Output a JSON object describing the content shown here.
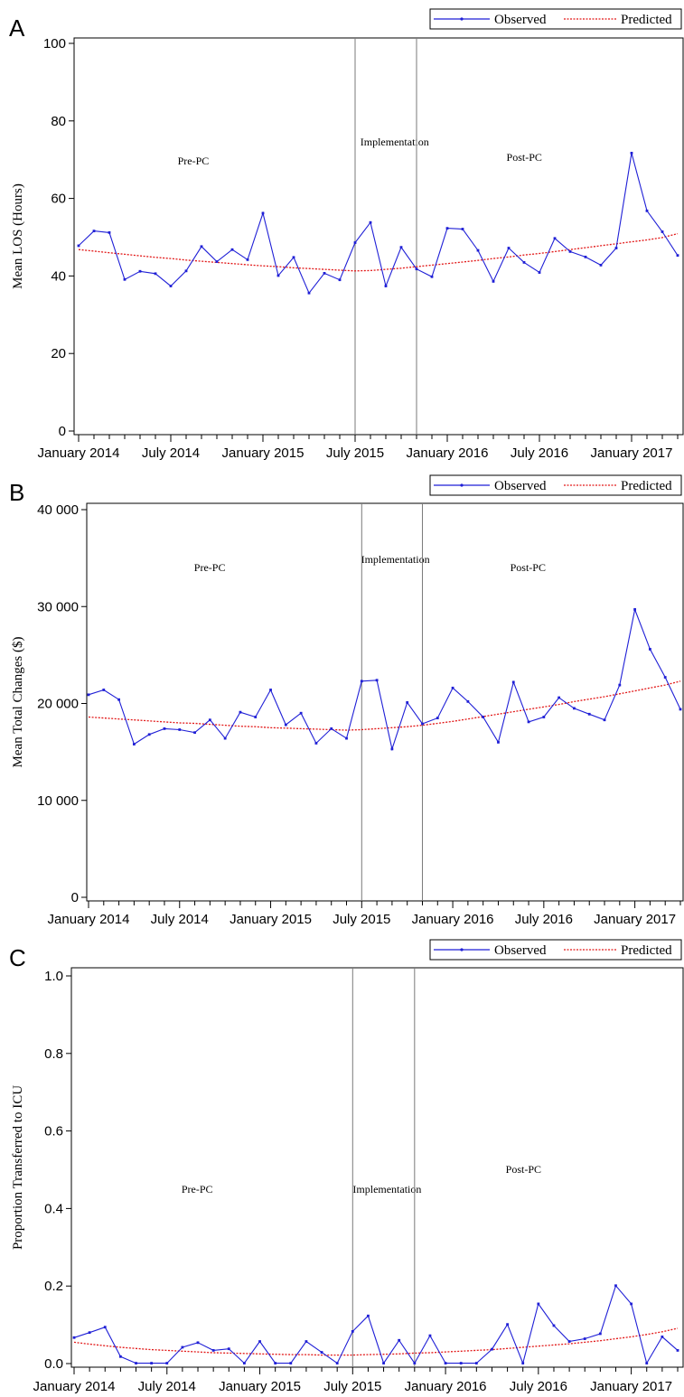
{
  "legend": {
    "observed": "Observed",
    "predicted": "Predicted"
  },
  "colors": {
    "observed": "#1f1fd6",
    "predicted": "#e21818",
    "axis": "#000000",
    "phase_line": "#7a7a7a"
  },
  "chart_data": [
    {
      "panel_label": "A",
      "type": "line",
      "ylabel": "Mean LOS (Hours)",
      "ylim": [
        0,
        100
      ],
      "yticks": [
        0,
        20,
        40,
        60,
        80,
        100
      ],
      "ytick_labels": [
        "0",
        "20",
        "40",
        "60",
        "80",
        "100"
      ],
      "xtick_labels": [
        "January 2014",
        "July 2014",
        "January 2015",
        "July 2015",
        "January 2016",
        "July 2016",
        "January 2017"
      ],
      "phase_labels": [
        "Pre-PC",
        "Implementation",
        "Post-PC"
      ],
      "phase_boundaries_month_index": [
        18,
        22
      ],
      "series": [
        {
          "name": "Observed",
          "values": [
            47.8,
            51.6,
            51.2,
            39.1,
            41.2,
            40.6,
            37.4,
            41.3,
            47.6,
            43.7,
            46.8,
            44.2,
            56.2,
            40.1,
            44.8,
            35.6,
            40.7,
            39.0,
            48.6,
            53.8,
            37.4,
            47.4,
            41.8,
            39.8,
            52.3,
            52.1,
            46.6,
            38.6,
            47.2,
            43.5,
            40.9,
            49.7,
            46.3,
            44.9,
            42.8,
            47.2,
            71.7,
            56.8,
            51.4,
            45.3
          ]
        },
        {
          "name": "Predicted",
          "values": [
            46.8,
            46.4,
            46.0,
            45.6,
            45.2,
            44.8,
            44.5,
            44.1,
            43.8,
            43.5,
            43.2,
            42.9,
            42.6,
            42.4,
            42.1,
            41.9,
            41.7,
            41.5,
            41.3,
            41.4,
            41.7,
            42.0,
            42.4,
            42.8,
            43.2,
            43.6,
            44.0,
            44.5,
            44.9,
            45.4,
            45.8,
            46.3,
            46.8,
            47.3,
            47.8,
            48.3,
            48.8,
            49.3,
            49.9,
            50.9
          ]
        }
      ]
    },
    {
      "panel_label": "B",
      "type": "line",
      "ylabel": "Mean Total Changes ($)",
      "ylim": [
        0,
        40000
      ],
      "yticks": [
        0,
        10000,
        20000,
        30000,
        40000
      ],
      "ytick_labels": [
        "0",
        "10 000",
        "20 000",
        "30 000",
        "40 000"
      ],
      "xtick_labels": [
        "January 2014",
        "July 2014",
        "January 2015",
        "July 2015",
        "January 2016",
        "July 2016",
        "January 2017"
      ],
      "phase_labels": [
        "Pre-PC",
        "Implementation",
        "Post-PC"
      ],
      "phase_boundaries_month_index": [
        18,
        22
      ],
      "series": [
        {
          "name": "Observed",
          "values": [
            20900,
            21400,
            20400,
            15800,
            16800,
            17400,
            17300,
            17000,
            18300,
            16400,
            19100,
            18600,
            21400,
            17800,
            19000,
            15900,
            17400,
            16400,
            22300,
            22400,
            15300,
            20100,
            17900,
            18500,
            21600,
            20200,
            18600,
            16000,
            22200,
            18100,
            18600,
            20600,
            19500,
            18900,
            18300,
            21900,
            29700,
            25600,
            22700,
            19400
          ]
        },
        {
          "name": "Predicted",
          "values": [
            18600,
            18500,
            18400,
            18300,
            18200,
            18100,
            18000,
            17950,
            17850,
            17750,
            17650,
            17600,
            17500,
            17450,
            17400,
            17350,
            17300,
            17250,
            17300,
            17400,
            17500,
            17600,
            17750,
            17950,
            18150,
            18400,
            18650,
            18900,
            19150,
            19400,
            19650,
            19900,
            20200,
            20450,
            20700,
            21000,
            21300,
            21600,
            21900,
            22300
          ]
        }
      ]
    },
    {
      "panel_label": "C",
      "type": "line",
      "ylabel": "Proportion Transferred to ICU",
      "ylim": [
        0,
        1.0
      ],
      "yticks": [
        0,
        0.2,
        0.4,
        0.6,
        0.8,
        1.0
      ],
      "ytick_labels": [
        "0.0",
        "0.2",
        "0.4",
        "0.6",
        "0.8",
        "1.0"
      ],
      "xtick_labels": [
        "January 2014",
        "July 2014",
        "January 2015",
        "July 2015",
        "January 2016",
        "July 2016",
        "January 2017"
      ],
      "phase_labels": [
        "Pre-PC",
        "Implementation",
        "Post-PC"
      ],
      "phase_boundaries_month_index": [
        18,
        22
      ],
      "series": [
        {
          "name": "Observed",
          "values": [
            0.067,
            0.08,
            0.094,
            0.018,
            0.001,
            0.001,
            0.001,
            0.042,
            0.054,
            0.034,
            0.038,
            0.001,
            0.057,
            0.001,
            0.001,
            0.057,
            0.029,
            0.001,
            0.083,
            0.123,
            0.001,
            0.06,
            0.001,
            0.072,
            0.001,
            0.001,
            0.001,
            0.037,
            0.101,
            0.001,
            0.154,
            0.098,
            0.057,
            0.064,
            0.077,
            0.201,
            0.154,
            0.001,
            0.069,
            0.034
          ]
        },
        {
          "name": "Predicted",
          "values": [
            0.055,
            0.05,
            0.046,
            0.042,
            0.039,
            0.036,
            0.034,
            0.032,
            0.03,
            0.028,
            0.027,
            0.026,
            0.025,
            0.024,
            0.023,
            0.023,
            0.022,
            0.022,
            0.022,
            0.023,
            0.024,
            0.025,
            0.027,
            0.028,
            0.03,
            0.032,
            0.034,
            0.036,
            0.039,
            0.042,
            0.045,
            0.048,
            0.051,
            0.055,
            0.059,
            0.064,
            0.069,
            0.075,
            0.082,
            0.091
          ]
        }
      ]
    }
  ]
}
